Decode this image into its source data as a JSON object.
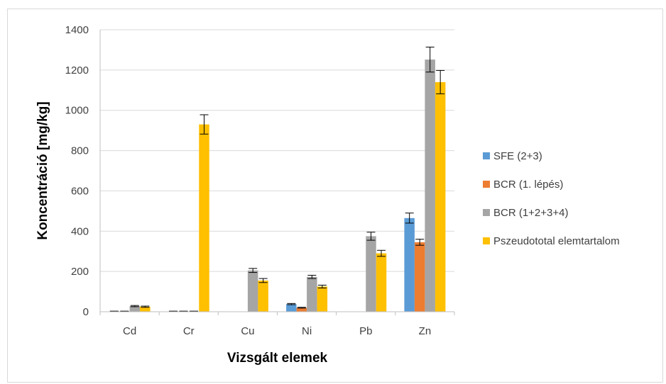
{
  "chart_data": {
    "type": "bar",
    "title": "",
    "xlabel": "Vizsgált elemek",
    "ylabel": "Koncentráció [mg/kg]",
    "ylim": [
      0,
      1400
    ],
    "yticks": [
      0,
      200,
      400,
      600,
      800,
      1000,
      1200,
      1400
    ],
    "grid": true,
    "legend_position": "right",
    "categories": [
      "Cd",
      "Cr",
      "Cu",
      "Ni",
      "Pb",
      "Zn"
    ],
    "series": [
      {
        "name": "SFE (2+3)",
        "color": "#5B9BD5",
        "values": [
          2,
          2,
          0,
          38,
          0,
          465
        ],
        "errors": [
          1,
          1,
          0,
          3,
          0,
          25
        ]
      },
      {
        "name": "BCR (1. lépés)",
        "color": "#ED7D31",
        "values": [
          2,
          2,
          0,
          20,
          0,
          345
        ],
        "errors": [
          1,
          1,
          0,
          2,
          0,
          15
        ]
      },
      {
        "name": "BCR (1+2+3+4)",
        "color": "#A5A5A5",
        "values": [
          28,
          2,
          205,
          173,
          375,
          1252
        ],
        "errors": [
          3,
          1,
          10,
          8,
          20,
          62
        ]
      },
      {
        "name": "Pszeudototal elemtartalom",
        "color": "#FFC000",
        "values": [
          25,
          930,
          155,
          125,
          290,
          1140
        ],
        "errors": [
          3,
          48,
          10,
          7,
          15,
          58
        ]
      }
    ]
  }
}
